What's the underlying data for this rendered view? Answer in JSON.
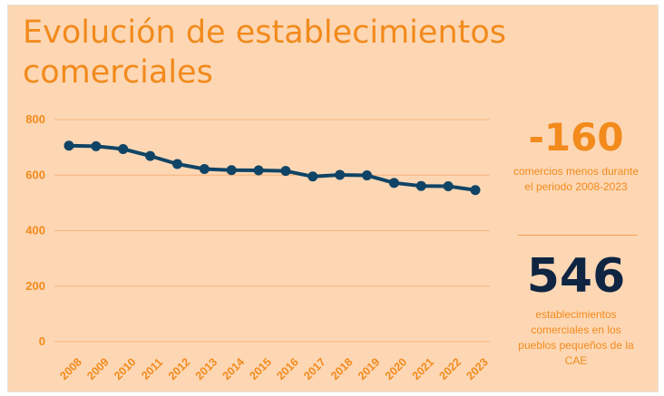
{
  "title": "Evolución de establecimientos comerciales",
  "colors": {
    "background": "#fdd7b4",
    "accent": "#f28a1c",
    "line": "#0f4466",
    "navy": "#0f2542",
    "grid": "#f6b47a"
  },
  "chart_data": {
    "type": "line",
    "x": [
      "2008",
      "2009",
      "2010",
      "2011",
      "2012",
      "2013",
      "2014",
      "2015",
      "2016",
      "2017",
      "2018",
      "2019",
      "2020",
      "2021",
      "2022",
      "2023"
    ],
    "series": [
      {
        "values": [
          706,
          704,
          694,
          669,
          640,
          622,
          618,
          617,
          615,
          595,
          601,
          599,
          572,
          561,
          560,
          546
        ]
      }
    ],
    "y_ticks": [
      0,
      200,
      400,
      600,
      800
    ],
    "ylim": [
      0,
      800
    ],
    "grid": true,
    "xlabel": "",
    "ylabel": ""
  },
  "stats": {
    "decrease_value": "-160",
    "decrease_caption": "comercios menos durante el periodo 2008-2023",
    "total_value": "546",
    "total_caption": "establecimientos comerciales en los pueblos pequeños de la CAE"
  }
}
